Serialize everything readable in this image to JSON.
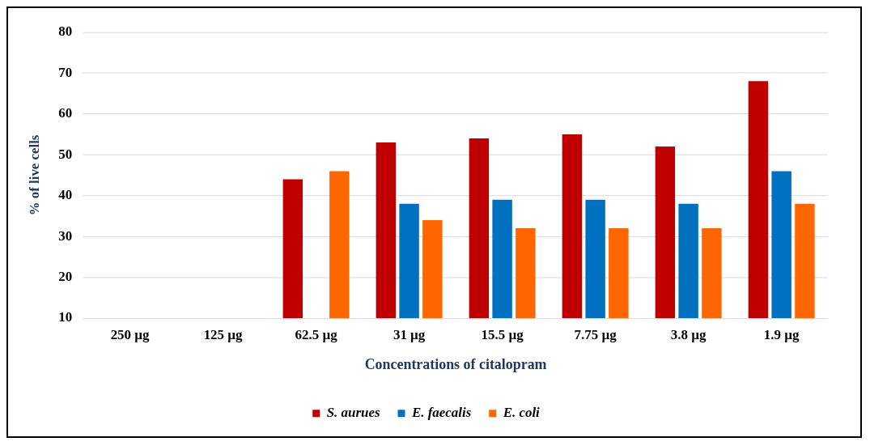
{
  "chart_data": {
    "type": "bar",
    "xlabel": "Concentrations of citalopram",
    "ylabel": "% of live cells",
    "categories": [
      "250 µg",
      "125 µg",
      "62.5 µg",
      "31 µg",
      "15.5 µg",
      "7.75 µg",
      "3.8 µg",
      "1.9 µg"
    ],
    "series": [
      {
        "name": "S. aurues",
        "color": "#c00000",
        "values": [
          null,
          null,
          44,
          53,
          54,
          55,
          52,
          68
        ]
      },
      {
        "name": "E. faecalis",
        "color": "#0070c0",
        "values": [
          null,
          null,
          null,
          38,
          39,
          39,
          38,
          46
        ]
      },
      {
        "name": "E. coli",
        "color": "#ff6600",
        "values": [
          null,
          null,
          46,
          34,
          32,
          32,
          32,
          38
        ]
      }
    ],
    "ylim": [
      10,
      80
    ],
    "yticks": [
      10,
      20,
      30,
      40,
      50,
      60,
      70,
      80
    ],
    "grid": "y",
    "legend": "bottom"
  }
}
